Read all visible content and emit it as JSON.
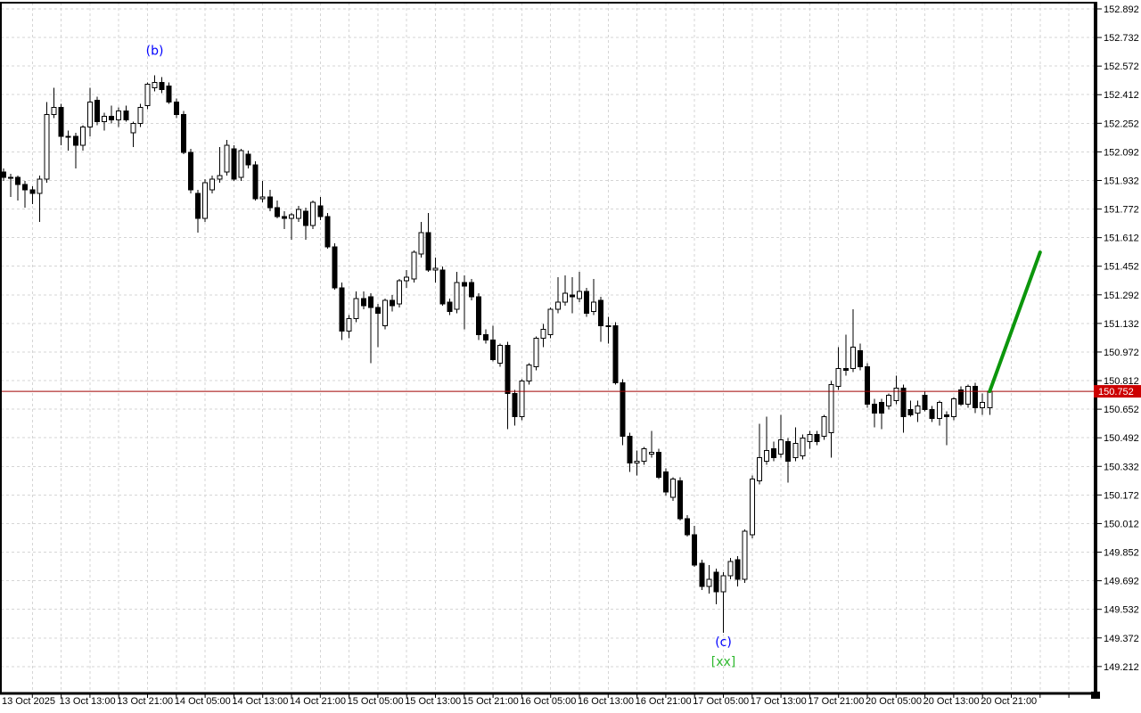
{
  "window": {
    "background": "#ffffff"
  },
  "colors": {
    "grid": "#d5d5d5",
    "frame": "#000000",
    "bull_fill": "#ffffff",
    "bear_fill": "#000000",
    "candle_outline": "#000000",
    "current_price_line": "#a00000",
    "current_price_box": "#cc0000",
    "current_price_text": "#ffffff",
    "projection_line": "#0c960c",
    "wave_label_color": "#0000ff",
    "signal_label_color": "#2eb82e",
    "axis_text": "#000000"
  },
  "current_price": {
    "value": "150.752"
  },
  "annotations": [
    {
      "text": "(b)",
      "index": 21,
      "price": 152.66,
      "color": "#0000ff",
      "name": "wave-label-b"
    },
    {
      "text": "(c)",
      "index": 100,
      "price": 149.35,
      "color": "#0000ff",
      "name": "wave-label-c"
    },
    {
      "text": "[xx]",
      "index": 100,
      "price": 149.24,
      "color": "#2eb82e",
      "name": "signal-label-xx"
    }
  ],
  "chart_data": {
    "type": "candlestick",
    "title": "",
    "xlabel": "",
    "ylabel": "",
    "grid": true,
    "legend_position": "none",
    "ylim": [
      149.07,
      152.93
    ],
    "y_tick_step": 0.16,
    "candles_per_x_tick": 8,
    "y_tick_labels": [
      "152.892",
      "152.732",
      "152.572",
      "152.412",
      "152.252",
      "152.092",
      "151.932",
      "151.772",
      "151.612",
      "151.452",
      "151.292",
      "151.132",
      "150.972",
      "150.812",
      "150.652",
      "150.492",
      "150.332",
      "150.172",
      "150.012",
      "149.852",
      "149.692",
      "149.532",
      "149.372",
      "149.212"
    ],
    "x_tick_labels": [
      "13 Oct 2025",
      "13 Oct 13:00",
      "13 Oct 21:00",
      "14 Oct 05:00",
      "14 Oct 13:00",
      "14 Oct 21:00",
      "15 Oct 05:00",
      "15 Oct 13:00",
      "15 Oct 21:00",
      "16 Oct 05:00",
      "16 Oct 13:00",
      "16 Oct 21:00",
      "17 Oct 05:00",
      "17 Oct 13:00",
      "17 Oct 21:00",
      "20 Oct 05:00",
      "20 Oct 13:00",
      "20 Oct 21:00"
    ],
    "current_price": 150.752,
    "projection_line": {
      "from_index": 137,
      "from_price": 150.752,
      "to_index": 144,
      "to_price": 151.53
    },
    "candles_ohlc": [
      [
        151.98,
        152.0,
        151.93,
        151.95
      ],
      [
        151.95,
        151.97,
        151.84,
        151.95
      ],
      [
        151.95,
        151.96,
        151.82,
        151.91
      ],
      [
        151.91,
        151.93,
        151.78,
        151.88
      ],
      [
        151.88,
        151.9,
        151.8,
        151.86
      ],
      [
        151.86,
        151.96,
        151.7,
        151.94
      ],
      [
        151.94,
        152.37,
        151.92,
        152.3
      ],
      [
        152.3,
        152.45,
        152.28,
        152.34
      ],
      [
        152.34,
        152.36,
        152.13,
        152.18
      ],
      [
        152.18,
        152.21,
        152.1,
        152.18
      ],
      [
        152.18,
        152.2,
        152.0,
        152.13
      ],
      [
        152.13,
        152.24,
        152.1,
        152.23
      ],
      [
        152.23,
        152.45,
        152.18,
        152.37
      ],
      [
        152.38,
        152.4,
        152.24,
        152.26
      ],
      [
        152.26,
        152.31,
        152.21,
        152.29
      ],
      [
        152.29,
        152.35,
        152.25,
        152.27
      ],
      [
        152.27,
        152.34,
        152.23,
        152.32
      ],
      [
        152.32,
        152.35,
        152.26,
        152.27
      ],
      [
        152.2,
        152.26,
        152.12,
        152.25
      ],
      [
        152.25,
        152.36,
        152.23,
        152.34
      ],
      [
        152.35,
        152.48,
        152.33,
        152.47
      ],
      [
        152.45,
        152.52,
        152.43,
        152.48
      ],
      [
        152.48,
        152.51,
        152.42,
        152.44
      ],
      [
        152.46,
        152.48,
        152.36,
        152.37
      ],
      [
        152.37,
        152.39,
        152.28,
        152.3
      ],
      [
        152.3,
        152.32,
        152.08,
        152.09
      ],
      [
        152.09,
        152.11,
        151.86,
        151.88
      ],
      [
        151.86,
        151.88,
        151.64,
        151.72
      ],
      [
        151.72,
        151.94,
        151.7,
        151.92
      ],
      [
        151.88,
        151.96,
        151.86,
        151.94
      ],
      [
        151.94,
        152.12,
        151.92,
        151.96
      ],
      [
        151.98,
        152.16,
        151.96,
        152.13
      ],
      [
        152.11,
        152.13,
        151.93,
        151.94
      ],
      [
        151.95,
        152.11,
        151.93,
        152.1
      ],
      [
        152.08,
        152.1,
        152.0,
        152.02
      ],
      [
        152.02,
        152.04,
        151.82,
        151.83
      ],
      [
        151.83,
        151.93,
        151.81,
        151.84
      ],
      [
        151.84,
        151.88,
        151.76,
        151.78
      ],
      [
        151.78,
        151.82,
        151.72,
        151.73
      ],
      [
        151.73,
        151.76,
        151.66,
        151.72
      ],
      [
        151.72,
        151.75,
        151.6,
        151.74
      ],
      [
        151.72,
        151.79,
        151.7,
        151.77
      ],
      [
        151.76,
        151.78,
        151.6,
        151.68
      ],
      [
        151.68,
        151.82,
        151.66,
        151.81
      ],
      [
        151.79,
        151.84,
        151.71,
        151.73
      ],
      [
        151.73,
        151.75,
        151.55,
        151.56
      ],
      [
        151.56,
        151.58,
        151.32,
        151.33
      ],
      [
        151.33,
        151.36,
        151.04,
        151.09
      ],
      [
        151.09,
        151.18,
        151.05,
        151.16
      ],
      [
        151.16,
        151.31,
        151.14,
        151.27
      ],
      [
        151.27,
        151.31,
        151.21,
        151.23
      ],
      [
        151.28,
        151.3,
        150.91,
        151.22
      ],
      [
        151.22,
        151.24,
        151.0,
        151.19
      ],
      [
        151.12,
        151.27,
        151.1,
        151.26
      ],
      [
        151.26,
        151.29,
        151.2,
        151.23
      ],
      [
        151.24,
        151.38,
        151.22,
        151.37
      ],
      [
        151.37,
        151.43,
        151.33,
        151.39
      ],
      [
        151.38,
        151.54,
        151.36,
        151.53
      ],
      [
        151.52,
        151.7,
        151.5,
        151.64
      ],
      [
        151.64,
        151.75,
        151.42,
        151.43
      ],
      [
        151.43,
        151.5,
        151.36,
        151.44
      ],
      [
        151.43,
        151.45,
        151.23,
        151.24
      ],
      [
        151.25,
        151.27,
        151.18,
        151.2
      ],
      [
        151.21,
        151.42,
        151.19,
        151.36
      ],
      [
        151.36,
        151.4,
        151.1,
        151.34
      ],
      [
        151.36,
        151.38,
        151.26,
        151.28
      ],
      [
        151.28,
        151.3,
        151.04,
        151.07
      ],
      [
        151.07,
        151.1,
        151.02,
        151.04
      ],
      [
        151.04,
        151.12,
        150.92,
        150.93
      ],
      [
        150.91,
        151.02,
        150.89,
        151.01
      ],
      [
        151.01,
        151.03,
        150.54,
        150.74
      ],
      [
        150.74,
        150.76,
        150.56,
        150.61
      ],
      [
        150.61,
        150.82,
        150.59,
        150.81
      ],
      [
        150.81,
        150.91,
        150.79,
        150.9
      ],
      [
        150.89,
        151.06,
        150.87,
        151.05
      ],
      [
        151.05,
        151.13,
        151.0,
        151.1
      ],
      [
        151.07,
        151.22,
        151.05,
        151.21
      ],
      [
        151.21,
        151.39,
        151.19,
        151.25
      ],
      [
        151.25,
        151.4,
        151.23,
        151.3
      ],
      [
        151.29,
        151.39,
        151.19,
        151.28
      ],
      [
        151.27,
        151.42,
        151.25,
        151.31
      ],
      [
        151.31,
        151.33,
        151.17,
        151.19
      ],
      [
        151.2,
        151.38,
        151.18,
        151.25
      ],
      [
        151.26,
        151.28,
        151.03,
        151.12
      ],
      [
        151.12,
        151.17,
        151.02,
        151.12
      ],
      [
        151.12,
        151.14,
        150.79,
        150.8
      ],
      [
        150.8,
        150.82,
        150.45,
        150.5
      ],
      [
        150.5,
        150.52,
        150.3,
        150.35
      ],
      [
        150.35,
        150.42,
        150.28,
        150.36
      ],
      [
        150.36,
        150.44,
        150.34,
        150.43
      ],
      [
        150.4,
        150.53,
        150.38,
        150.41
      ],
      [
        150.41,
        150.43,
        150.26,
        150.27
      ],
      [
        150.3,
        150.32,
        150.17,
        150.19
      ],
      [
        150.16,
        150.27,
        150.14,
        150.26
      ],
      [
        150.25,
        150.27,
        150.03,
        150.04
      ],
      [
        150.04,
        150.06,
        149.94,
        149.95
      ],
      [
        149.95,
        150.0,
        149.77,
        149.78
      ],
      [
        149.79,
        149.81,
        149.64,
        149.66
      ],
      [
        149.66,
        149.78,
        149.62,
        149.7
      ],
      [
        149.74,
        149.76,
        149.56,
        149.63
      ],
      [
        149.63,
        149.74,
        149.4,
        149.72
      ],
      [
        149.72,
        149.82,
        149.7,
        149.8
      ],
      [
        149.81,
        149.83,
        149.66,
        149.7
      ],
      [
        149.7,
        149.98,
        149.68,
        149.97
      ],
      [
        149.95,
        150.28,
        149.93,
        150.26
      ],
      [
        150.25,
        150.57,
        150.23,
        150.38
      ],
      [
        150.36,
        150.61,
        150.34,
        150.42
      ],
      [
        150.43,
        150.47,
        150.36,
        150.38
      ],
      [
        150.4,
        150.62,
        150.38,
        150.48
      ],
      [
        150.47,
        150.49,
        150.24,
        150.36
      ],
      [
        150.38,
        150.55,
        150.36,
        150.46
      ],
      [
        150.39,
        150.51,
        150.37,
        150.49
      ],
      [
        150.47,
        150.53,
        150.43,
        150.51
      ],
      [
        150.51,
        150.53,
        150.45,
        150.47
      ],
      [
        150.5,
        150.62,
        150.48,
        150.61
      ],
      [
        150.52,
        150.81,
        150.38,
        150.79
      ],
      [
        150.78,
        151.0,
        150.76,
        150.88
      ],
      [
        150.88,
        151.07,
        150.84,
        150.87
      ],
      [
        150.88,
        151.21,
        150.86,
        151.0
      ],
      [
        150.98,
        151.02,
        150.87,
        150.89
      ],
      [
        150.89,
        150.91,
        150.66,
        150.68
      ],
      [
        150.68,
        150.71,
        150.55,
        150.63
      ],
      [
        150.69,
        150.71,
        150.54,
        150.63
      ],
      [
        150.67,
        150.74,
        150.65,
        150.73
      ],
      [
        150.7,
        150.84,
        150.68,
        150.77
      ],
      [
        150.77,
        150.79,
        150.52,
        150.61
      ],
      [
        150.65,
        150.7,
        150.61,
        150.62
      ],
      [
        150.63,
        150.7,
        150.58,
        150.67
      ],
      [
        150.73,
        150.75,
        150.64,
        150.65
      ],
      [
        150.65,
        150.67,
        150.58,
        150.6
      ],
      [
        150.6,
        150.7,
        150.56,
        150.69
      ],
      [
        150.62,
        150.64,
        150.45,
        150.61
      ],
      [
        150.61,
        150.72,
        150.59,
        150.71
      ],
      [
        150.76,
        150.78,
        150.67,
        150.68
      ],
      [
        150.68,
        150.79,
        150.66,
        150.78
      ],
      [
        150.78,
        150.8,
        150.63,
        150.66
      ],
      [
        150.66,
        150.74,
        150.62,
        150.69
      ],
      [
        150.66,
        150.77,
        150.62,
        150.752
      ]
    ]
  }
}
